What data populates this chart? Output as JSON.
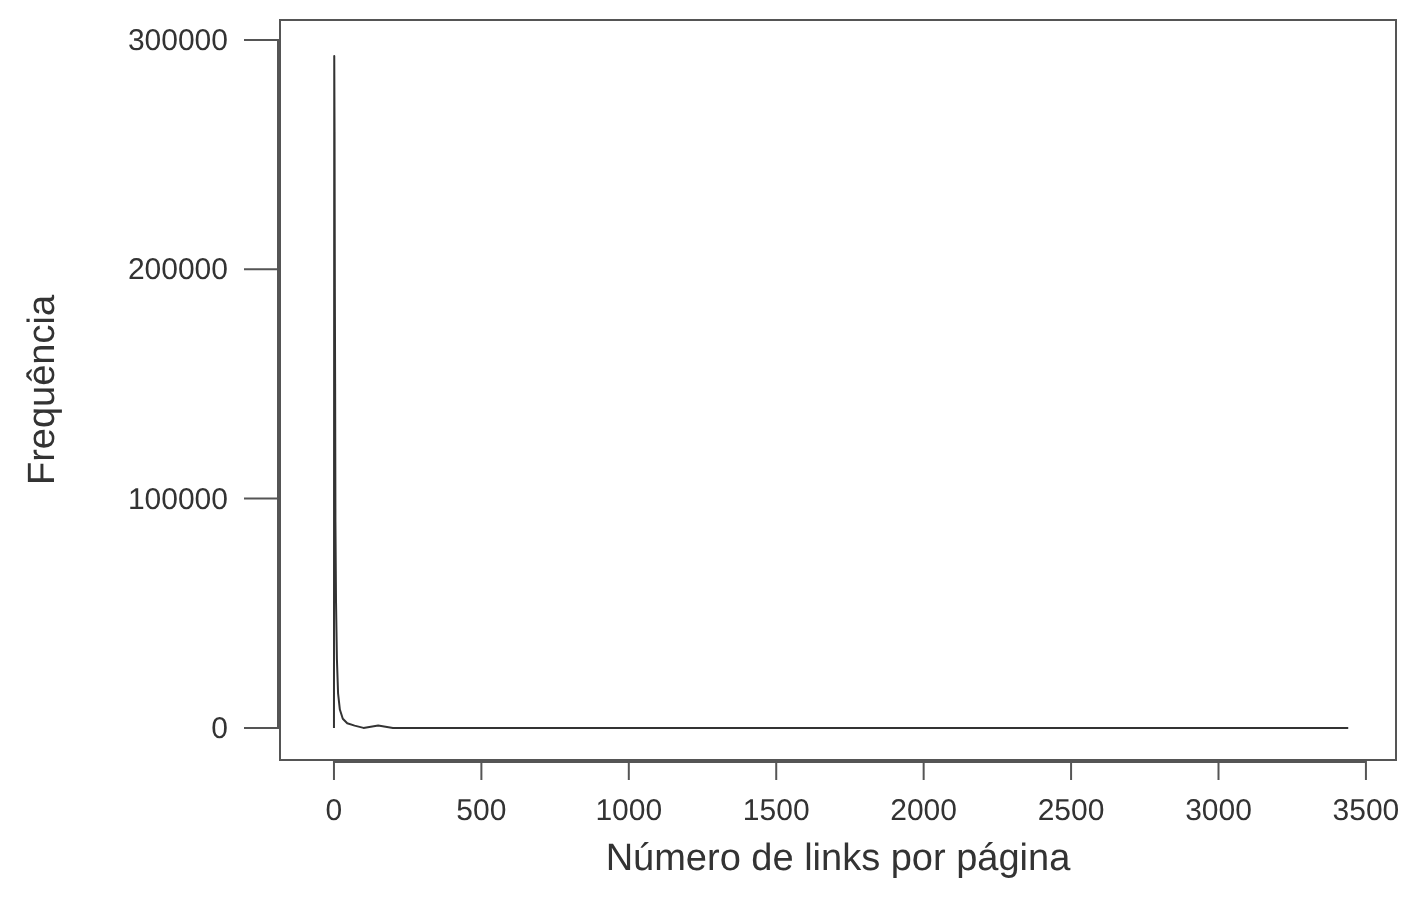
{
  "chart_data": {
    "type": "line",
    "xlabel": "Número de links por página",
    "ylabel": "Frequência",
    "x": [
      0,
      1,
      2,
      3,
      4,
      5,
      7,
      10,
      14,
      20,
      30,
      45,
      70,
      100,
      150,
      200,
      500,
      1000,
      2000,
      3440
    ],
    "series": [
      {
        "color": "#333333",
        "values": [
          0,
          293000,
          260000,
          192000,
          150000,
          90000,
          55000,
          30000,
          15000,
          8000,
          4000,
          2000,
          1000,
          0,
          1000,
          0,
          0,
          0,
          0,
          0
        ]
      }
    ],
    "xlim": [
      -183,
      3602
    ],
    "ylim": [
      -14000,
      308700
    ],
    "xticks": [
      0,
      500,
      1000,
      1500,
      2000,
      2500,
      3000,
      3500
    ],
    "yticks": [
      0,
      100000,
      200000,
      300000
    ],
    "grid": false,
    "line_style": "solid",
    "marker": "none"
  }
}
